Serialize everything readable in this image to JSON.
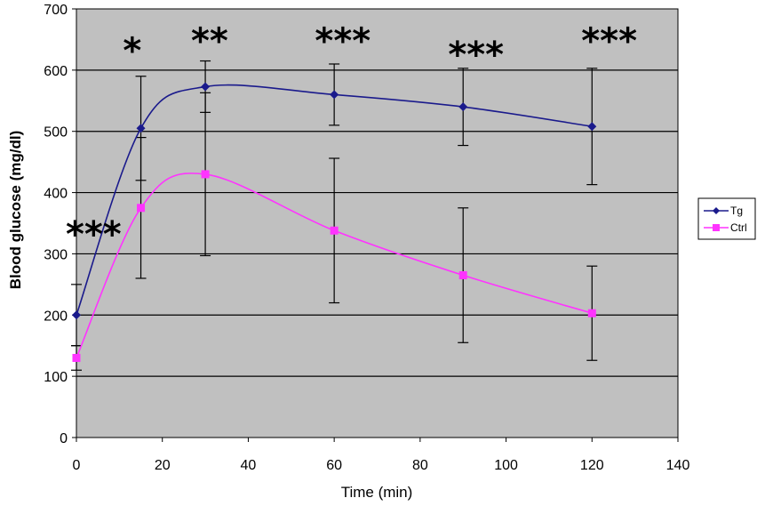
{
  "chart_data": {
    "type": "line",
    "title": "",
    "xlabel": "Time (min)",
    "ylabel": "Blood glucose (mg/dl)",
    "xlim": [
      0,
      140
    ],
    "ylim": [
      0,
      700
    ],
    "x_ticks": [
      0,
      20,
      40,
      60,
      80,
      100,
      120,
      140
    ],
    "y_ticks": [
      0,
      100,
      200,
      300,
      400,
      500,
      600,
      700
    ],
    "grid": "horizontal",
    "plot_background": "#c0c0c0",
    "legend": "right",
    "smooth": true,
    "series": [
      {
        "name": "Tg",
        "color": "#1a1a8c",
        "marker": "diamond",
        "x": [
          0,
          15,
          30,
          60,
          90,
          120
        ],
        "y": [
          200,
          505,
          573,
          560,
          540,
          508
        ],
        "error": [
          50,
          85,
          42,
          50,
          63,
          95
        ]
      },
      {
        "name": "Ctrl",
        "color": "#ff33ff",
        "marker": "square",
        "x": [
          0,
          15,
          30,
          60,
          90,
          120
        ],
        "y": [
          130,
          375,
          430,
          338,
          265,
          203
        ],
        "error": [
          20,
          115,
          133,
          118,
          110,
          77
        ]
      }
    ],
    "annotations": [
      {
        "text": "***",
        "x": 4,
        "y": 350
      },
      {
        "text": "*",
        "x": 13,
        "y": 650
      },
      {
        "text": "**",
        "x": 31,
        "y": 666
      },
      {
        "text": "***",
        "x": 62,
        "y": 666
      },
      {
        "text": "***",
        "x": 93,
        "y": 643
      },
      {
        "text": "***",
        "x": 124,
        "y": 666
      }
    ]
  }
}
